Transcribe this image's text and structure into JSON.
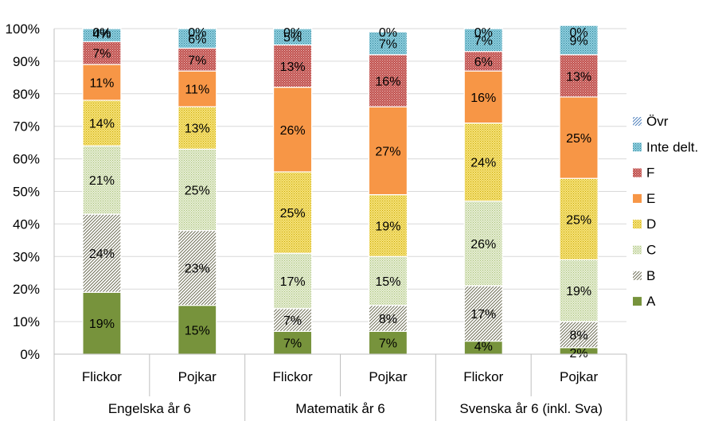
{
  "chart_data": {
    "type": "bar",
    "stacked": true,
    "percent_axis": true,
    "ylim": [
      0,
      100
    ],
    "yticks": [
      "0%",
      "10%",
      "20%",
      "30%",
      "40%",
      "50%",
      "60%",
      "70%",
      "80%",
      "90%",
      "100%"
    ],
    "grid": true,
    "legend_position": "right",
    "categories": [
      {
        "label": "Flickor",
        "group": 0
      },
      {
        "label": "Pojkar",
        "group": 0
      },
      {
        "label": "Flickor",
        "group": 1
      },
      {
        "label": "Pojkar",
        "group": 1
      },
      {
        "label": "Flickor",
        "group": 2
      },
      {
        "label": "Pojkar",
        "group": 2
      }
    ],
    "groups": [
      "Engelska år 6",
      "Matematik år 6",
      "Svenska år 6 (inkl. Sva)"
    ],
    "series": [
      {
        "name": "A",
        "color": "#77933c",
        "pattern": "solid",
        "values": [
          19,
          15,
          7,
          7,
          4,
          2
        ],
        "labels": [
          "19%",
          "15%",
          "7%",
          "7%",
          "4%",
          "2%"
        ]
      },
      {
        "name": "B",
        "color": "#8c8c6c",
        "pattern": "diag-dense",
        "values": [
          24,
          23,
          7,
          8,
          17,
          8
        ],
        "labels": [
          "24%",
          "23%",
          "7%",
          "8%",
          "17%",
          "8%"
        ]
      },
      {
        "name": "C",
        "color": "#c3d69b",
        "pattern": "dots-light",
        "values": [
          21,
          25,
          17,
          15,
          26,
          19
        ],
        "labels": [
          "21%",
          "25%",
          "17%",
          "15%",
          "26%",
          "19%"
        ]
      },
      {
        "name": "D",
        "color": "#f2d13a",
        "pattern": "dots",
        "values": [
          14,
          13,
          25,
          19,
          24,
          25
        ],
        "labels": [
          "14%",
          "13%",
          "25%",
          "19%",
          "24%",
          "25%"
        ]
      },
      {
        "name": "E",
        "color": "#f79646",
        "pattern": "solid",
        "values": [
          11,
          11,
          26,
          27,
          16,
          25
        ],
        "labels": [
          "11%",
          "11%",
          "26%",
          "27%",
          "16%",
          "25%"
        ]
      },
      {
        "name": "F",
        "color": "#c0504d",
        "pattern": "dots-dark",
        "values": [
          7,
          7,
          13,
          16,
          6,
          13
        ],
        "labels": [
          "7%",
          "7%",
          "13%",
          "16%",
          "6%",
          "13%"
        ]
      },
      {
        "name": "Inte delt.",
        "color": "#4bacc6",
        "pattern": "dots-blue",
        "values": [
          4,
          6,
          5,
          7,
          7,
          9
        ],
        "labels": [
          "4%",
          "6%",
          "5%",
          "7%",
          "7%",
          "9%"
        ]
      },
      {
        "name": "Övr",
        "color": "#4f81bd",
        "pattern": "diag-sparse",
        "values": [
          0,
          0,
          0,
          0,
          0,
          0
        ],
        "labels": [
          "0%",
          "0%",
          "0%",
          "0%",
          "0%",
          "0%"
        ]
      }
    ]
  }
}
